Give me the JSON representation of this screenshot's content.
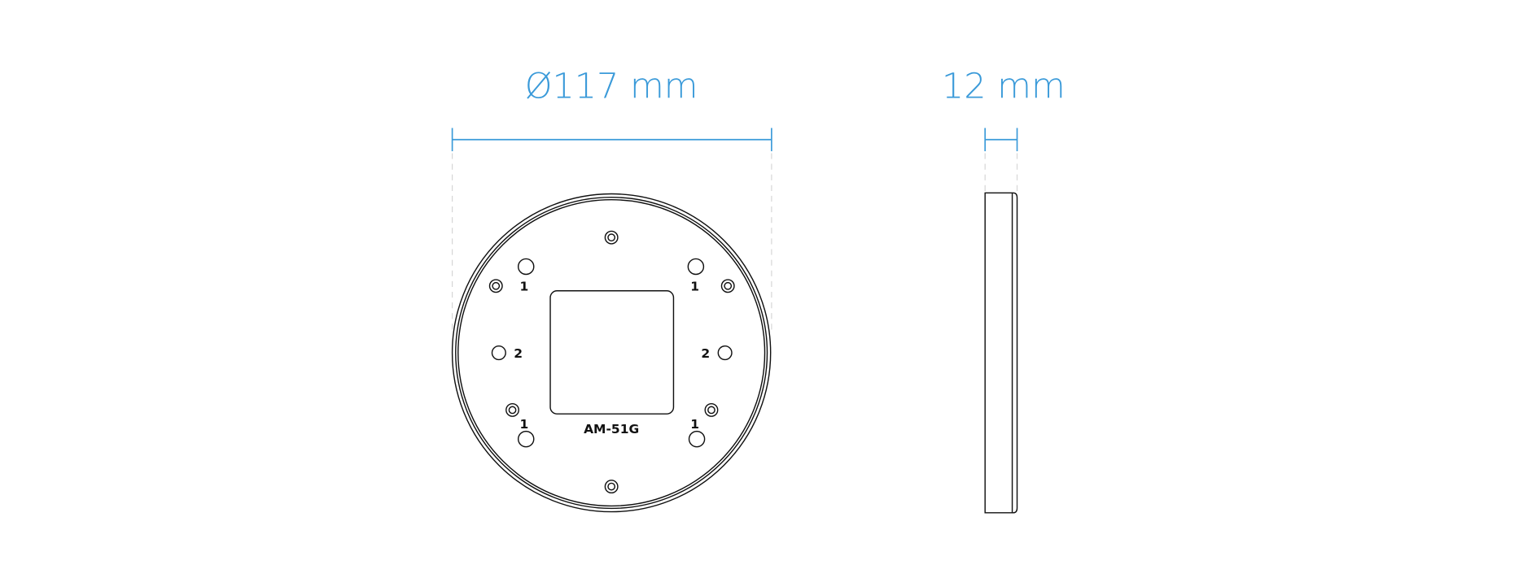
{
  "drawing": {
    "diameter_label": "Ø117 mm",
    "thickness_label": "12 mm",
    "model_label": "AM-51G",
    "position_labels": {
      "one": "1",
      "two": "2"
    },
    "dimension_color": "#3a9ad9",
    "line_color": "#111111"
  }
}
